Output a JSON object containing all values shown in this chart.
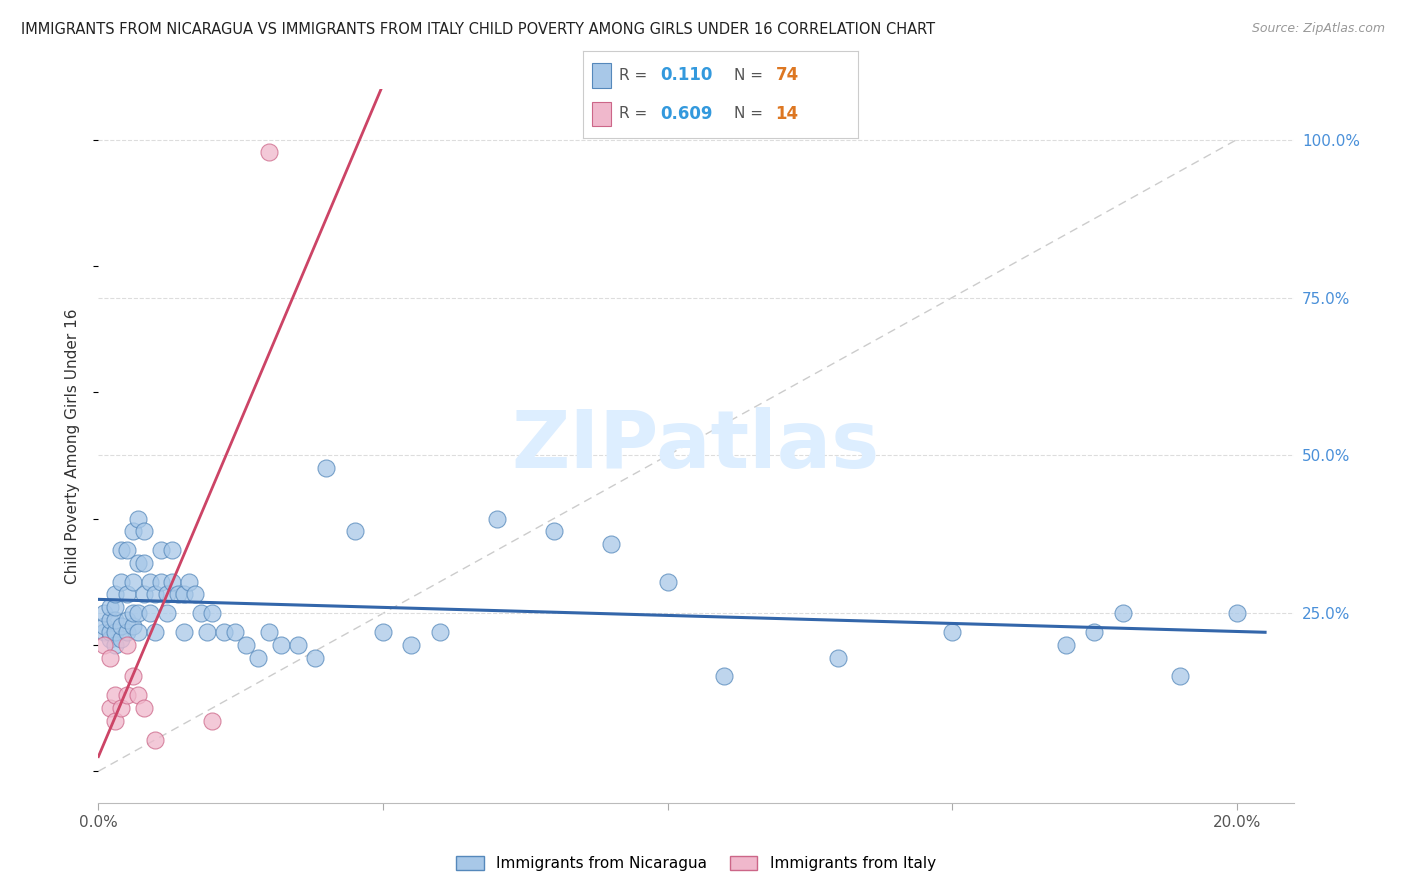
{
  "title": "IMMIGRANTS FROM NICARAGUA VS IMMIGRANTS FROM ITALY CHILD POVERTY AMONG GIRLS UNDER 16 CORRELATION CHART",
  "source": "Source: ZipAtlas.com",
  "ylabel": "Child Poverty Among Girls Under 16",
  "yaxis_labels": [
    "100.0%",
    "75.0%",
    "50.0%",
    "25.0%"
  ],
  "yaxis_values": [
    1.0,
    0.75,
    0.5,
    0.25
  ],
  "xtick_positions": [
    0.0,
    0.05,
    0.1,
    0.15,
    0.2
  ],
  "xtick_labels": [
    "0.0%",
    "",
    "",
    "",
    "20.0%"
  ],
  "xlim": [
    0.0,
    0.21
  ],
  "ylim": [
    -0.05,
    1.08
  ],
  "r_nicaragua": 0.11,
  "n_nicaragua": 74,
  "r_italy": 0.609,
  "n_italy": 14,
  "color_nicaragua": "#a8c8e8",
  "color_italy": "#f0b8cc",
  "color_nicaragua_edge": "#5588bb",
  "color_italy_edge": "#cc6688",
  "color_nicaragua_line": "#3366aa",
  "color_italy_line": "#cc4466",
  "color_diagonal": "#cccccc",
  "watermark": "ZIPatlas",
  "watermark_color": "#ddeeff",
  "nicaragua_x": [
    0.001,
    0.001,
    0.001,
    0.002,
    0.002,
    0.002,
    0.002,
    0.003,
    0.003,
    0.003,
    0.003,
    0.003,
    0.004,
    0.004,
    0.004,
    0.004,
    0.005,
    0.005,
    0.005,
    0.005,
    0.006,
    0.006,
    0.006,
    0.006,
    0.007,
    0.007,
    0.007,
    0.007,
    0.008,
    0.008,
    0.008,
    0.009,
    0.009,
    0.01,
    0.01,
    0.011,
    0.011,
    0.012,
    0.012,
    0.013,
    0.013,
    0.014,
    0.015,
    0.015,
    0.016,
    0.017,
    0.018,
    0.019,
    0.02,
    0.022,
    0.024,
    0.026,
    0.028,
    0.03,
    0.032,
    0.035,
    0.038,
    0.04,
    0.045,
    0.05,
    0.055,
    0.06,
    0.07,
    0.08,
    0.09,
    0.1,
    0.11,
    0.13,
    0.15,
    0.17,
    0.175,
    0.18,
    0.19,
    0.2
  ],
  "nicaragua_y": [
    0.22,
    0.23,
    0.25,
    0.21,
    0.22,
    0.24,
    0.26,
    0.2,
    0.22,
    0.24,
    0.26,
    0.28,
    0.21,
    0.23,
    0.3,
    0.35,
    0.22,
    0.24,
    0.28,
    0.35,
    0.23,
    0.25,
    0.3,
    0.38,
    0.22,
    0.25,
    0.33,
    0.4,
    0.28,
    0.33,
    0.38,
    0.25,
    0.3,
    0.22,
    0.28,
    0.3,
    0.35,
    0.25,
    0.28,
    0.3,
    0.35,
    0.28,
    0.22,
    0.28,
    0.3,
    0.28,
    0.25,
    0.22,
    0.25,
    0.22,
    0.22,
    0.2,
    0.18,
    0.22,
    0.2,
    0.2,
    0.18,
    0.48,
    0.38,
    0.22,
    0.2,
    0.22,
    0.4,
    0.38,
    0.36,
    0.3,
    0.15,
    0.18,
    0.22,
    0.2,
    0.22,
    0.25,
    0.15,
    0.25
  ],
  "italy_x": [
    0.001,
    0.002,
    0.002,
    0.003,
    0.003,
    0.004,
    0.005,
    0.005,
    0.006,
    0.007,
    0.008,
    0.01,
    0.02,
    0.03
  ],
  "italy_y": [
    0.2,
    0.18,
    0.1,
    0.12,
    0.08,
    0.1,
    0.12,
    0.2,
    0.15,
    0.12,
    0.1,
    0.05,
    0.08,
    0.98
  ]
}
